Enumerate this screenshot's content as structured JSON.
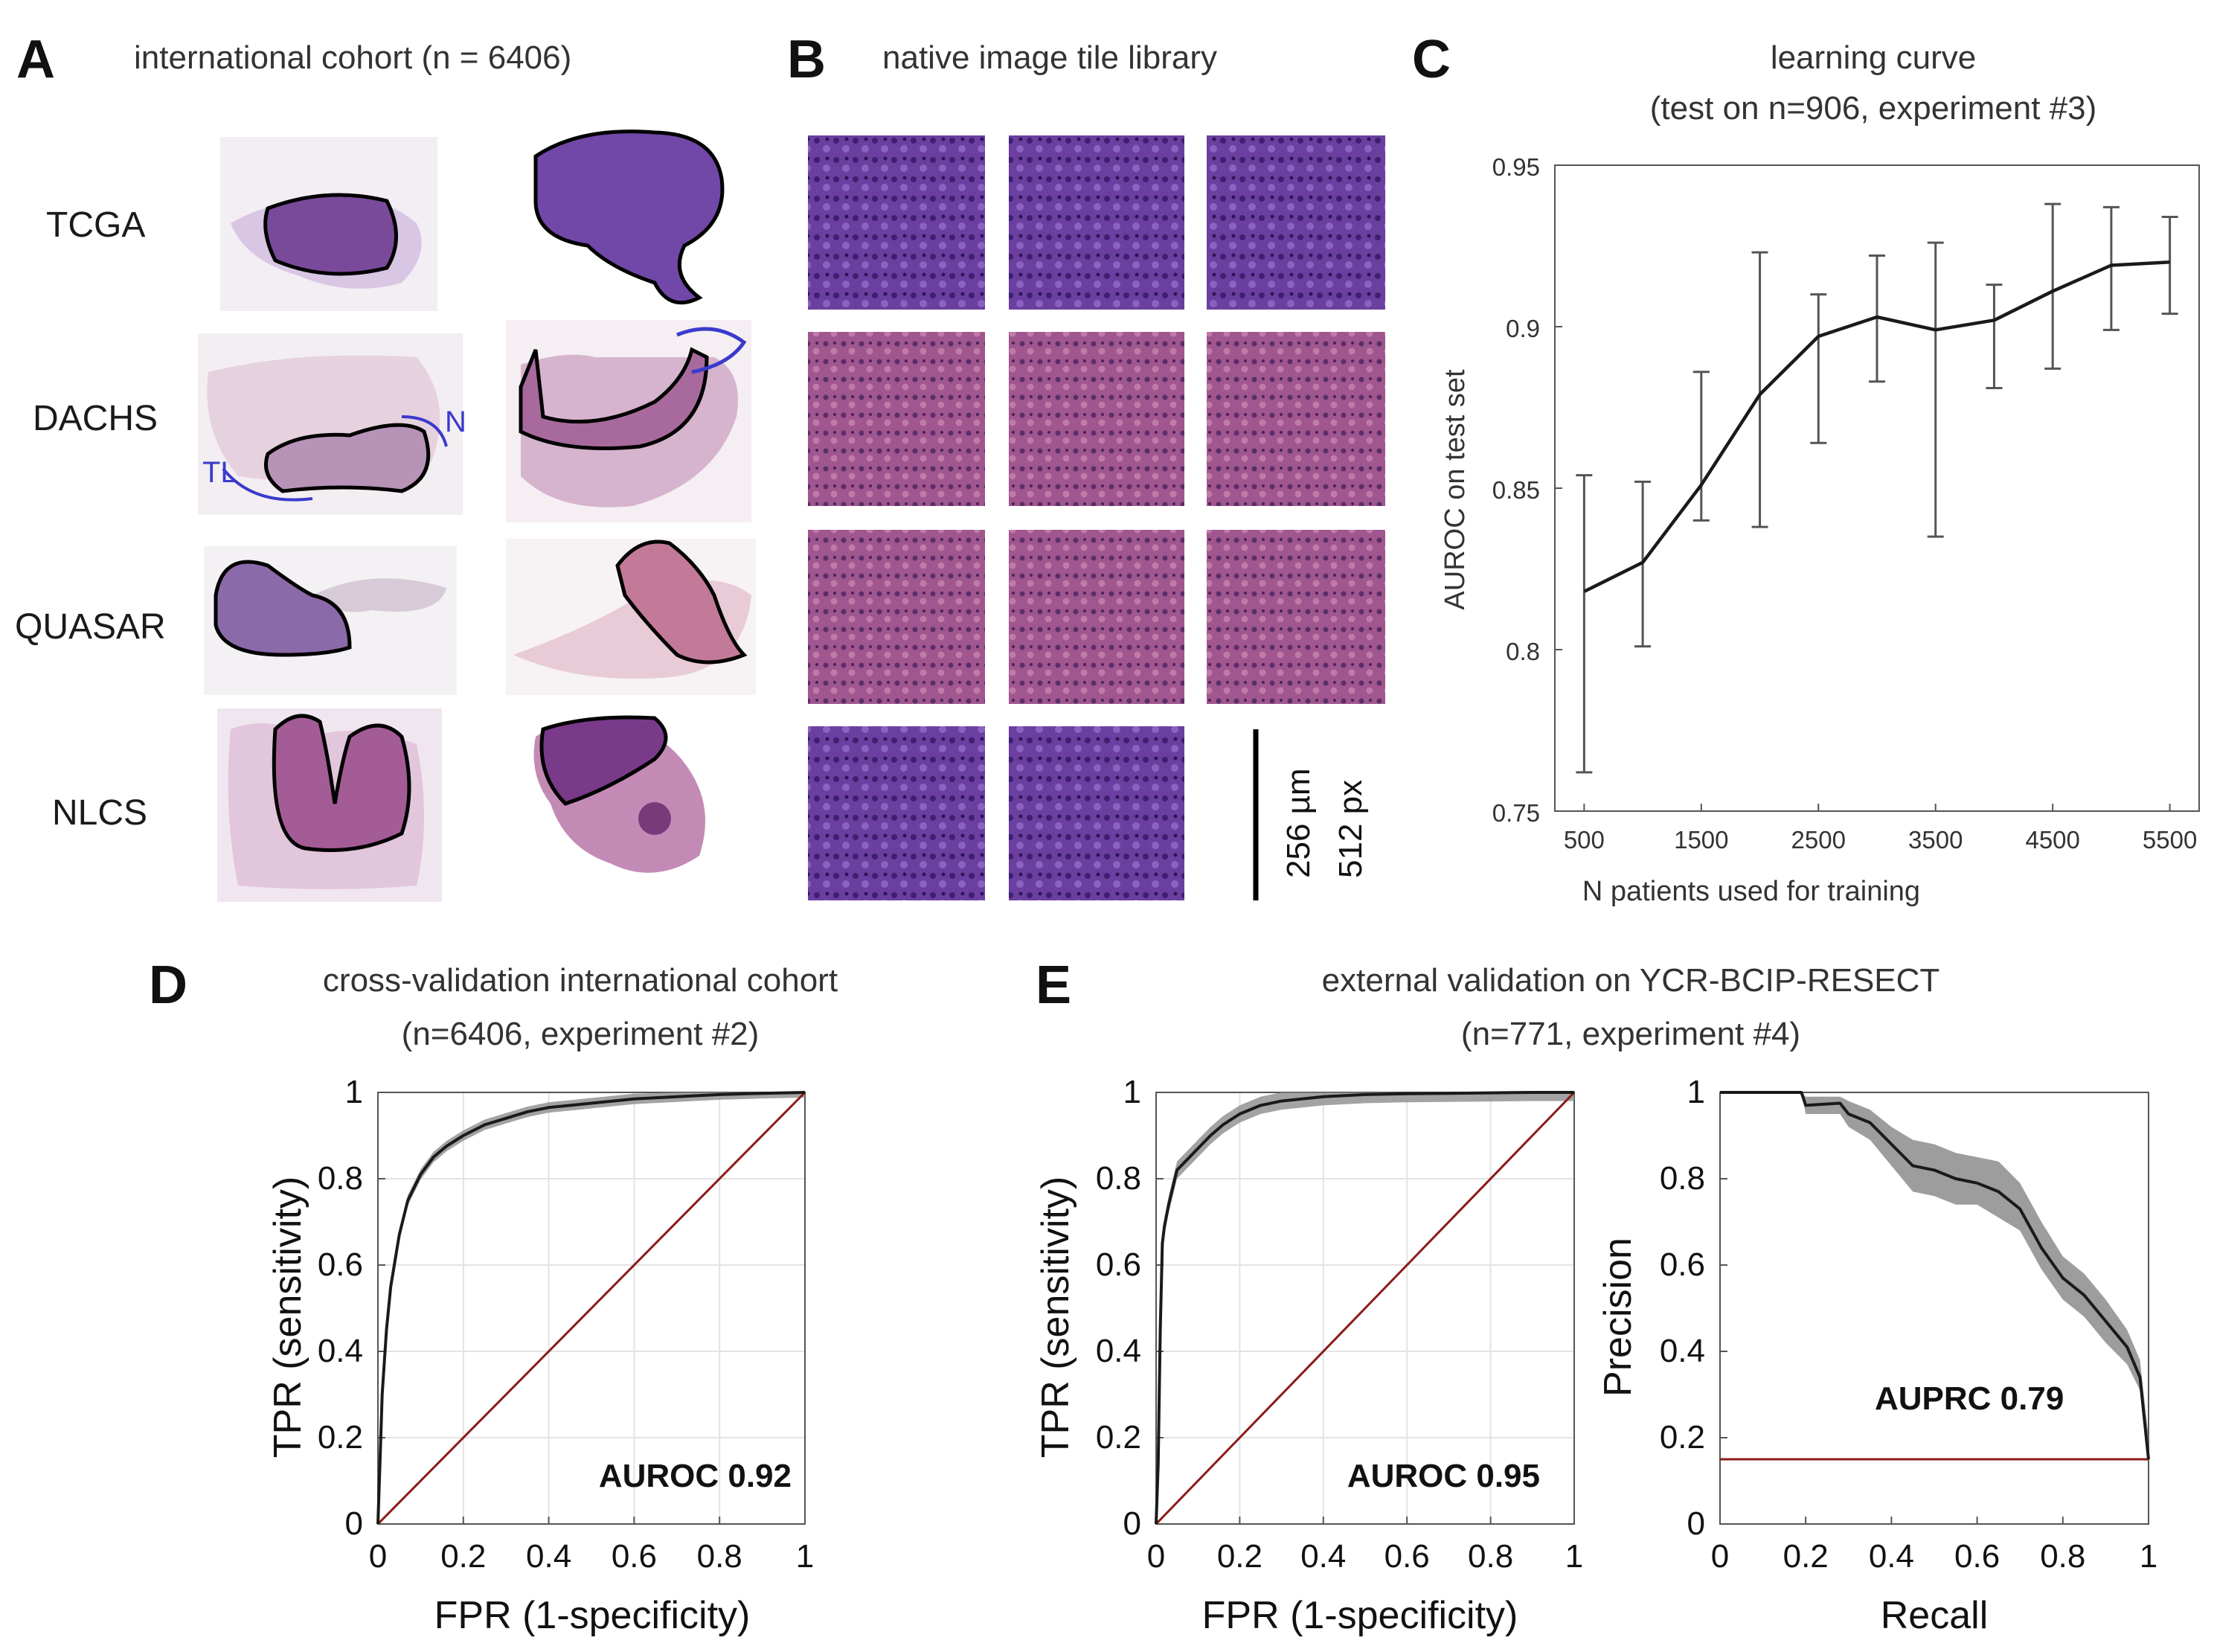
{
  "panel_a": {
    "letter": "A",
    "title": "international cohort (n = 6406)",
    "rows": [
      "TCGA",
      "DACHS",
      "QUASAR",
      "NLCS"
    ]
  },
  "panel_b": {
    "letter": "B",
    "title": "native image tile library",
    "scalebar": {
      "microns": "256 µm",
      "pixels": "512 px"
    }
  },
  "colors": {
    "curve": "#1a1a1a",
    "diagonal": "#8b1a1a",
    "band": "#8c8c8c",
    "errorbar": "#555555",
    "grid": "#e3e3e3",
    "tile_purple": "#6a3fa0",
    "tile_pink": "#a0568e"
  },
  "chart_data": [
    {
      "id": "C",
      "letter": "C",
      "type": "line",
      "title": "learning curve",
      "subtitle": "(test on n=906, experiment #3)",
      "xlabel": "N patients used for training",
      "ylabel": "AUROC on test set",
      "xlim": [
        250,
        5750
      ],
      "ylim": [
        0.75,
        0.95
      ],
      "xticks": [
        500,
        1500,
        2500,
        3500,
        4500,
        5500
      ],
      "xtick_labels": [
        "500",
        "1500",
        "2500",
        "3500",
        "4500",
        "5500"
      ],
      "yticks": [
        0.75,
        0.8,
        0.85,
        0.9,
        0.95
      ],
      "ytick_labels": [
        "0.75",
        "0.8",
        "0.85",
        "0.9",
        "0.95"
      ],
      "grid": false,
      "x": [
        500,
        1000,
        1500,
        2000,
        2500,
        3000,
        3500,
        4000,
        4500,
        5000,
        5500
      ],
      "y": [
        0.818,
        0.827,
        0.851,
        0.879,
        0.897,
        0.903,
        0.899,
        0.902,
        0.911,
        0.919,
        0.92
      ],
      "y_low": [
        0.762,
        0.801,
        0.84,
        0.838,
        0.864,
        0.883,
        0.835,
        0.881,
        0.887,
        0.899,
        0.904
      ],
      "y_high": [
        0.854,
        0.852,
        0.886,
        0.923,
        0.91,
        0.922,
        0.926,
        0.913,
        0.938,
        0.937,
        0.934
      ]
    },
    {
      "id": "D",
      "letter": "D",
      "type": "line",
      "title": "cross-validation international cohort",
      "subtitle": "(n=6406, experiment #2)",
      "xlabel": "FPR (1-specificity)",
      "ylabel": "TPR (sensitivity)",
      "xlim": [
        0,
        1
      ],
      "ylim": [
        0,
        1
      ],
      "xticks": [
        0,
        0.2,
        0.4,
        0.6,
        0.8,
        1
      ],
      "xtick_labels": [
        "0",
        "0.2",
        "0.4",
        "0.6",
        "0.8",
        "1"
      ],
      "yticks": [
        0,
        0.2,
        0.4,
        0.6,
        0.8,
        1
      ],
      "ytick_labels": [
        "0",
        "0.2",
        "0.4",
        "0.6",
        "0.8",
        "1"
      ],
      "grid": true,
      "annotation": "AUROC 0.92",
      "x": [
        0,
        0.005,
        0.01,
        0.02,
        0.03,
        0.05,
        0.07,
        0.1,
        0.13,
        0.16,
        0.2,
        0.25,
        0.3,
        0.35,
        0.4,
        0.5,
        0.6,
        0.7,
        0.8,
        0.9,
        1.0
      ],
      "y": [
        0,
        0.15,
        0.3,
        0.45,
        0.55,
        0.67,
        0.75,
        0.81,
        0.85,
        0.875,
        0.9,
        0.925,
        0.94,
        0.955,
        0.965,
        0.975,
        0.985,
        0.99,
        0.995,
        0.998,
        1.0
      ],
      "band": 0.012,
      "reference_line": {
        "x": [
          0,
          1
        ],
        "y": [
          0,
          1
        ]
      }
    },
    {
      "id": "E1",
      "letter": "E",
      "type": "line",
      "title": "external validation on YCR-BCIP-RESECT",
      "subtitle": "(n=771,  experiment #4)",
      "xlabel": "FPR (1-specificity)",
      "ylabel": "TPR (sensitivity)",
      "xlim": [
        0,
        1
      ],
      "ylim": [
        0,
        1
      ],
      "xticks": [
        0,
        0.2,
        0.4,
        0.6,
        0.8,
        1
      ],
      "xtick_labels": [
        "0",
        "0.2",
        "0.4",
        "0.6",
        "0.8",
        "1"
      ],
      "yticks": [
        0,
        0.2,
        0.4,
        0.6,
        0.8,
        1
      ],
      "ytick_labels": [
        "0",
        "0.2",
        "0.4",
        "0.6",
        "0.8",
        "1"
      ],
      "grid": true,
      "annotation": "AUROC 0.95",
      "x": [
        0,
        0.005,
        0.01,
        0.015,
        0.02,
        0.03,
        0.04,
        0.05,
        0.07,
        0.1,
        0.13,
        0.16,
        0.2,
        0.25,
        0.3,
        0.4,
        0.5,
        0.6,
        0.7,
        0.8,
        0.9,
        1.0
      ],
      "y": [
        0,
        0.14,
        0.45,
        0.65,
        0.69,
        0.74,
        0.78,
        0.82,
        0.84,
        0.87,
        0.9,
        0.925,
        0.95,
        0.97,
        0.98,
        0.99,
        0.995,
        0.997,
        0.998,
        0.999,
        1.0,
        1.0
      ],
      "band": 0.02,
      "reference_line": {
        "x": [
          0,
          1
        ],
        "y": [
          0,
          1
        ]
      }
    },
    {
      "id": "E2",
      "type": "line",
      "xlabel": "Recall",
      "ylabel": "Precision",
      "xlim": [
        0,
        1
      ],
      "ylim": [
        0,
        1
      ],
      "xticks": [
        0,
        0.2,
        0.4,
        0.6,
        0.8,
        1
      ],
      "xtick_labels": [
        "0",
        "0.2",
        "0.4",
        "0.6",
        "0.8",
        "1"
      ],
      "yticks": [
        0,
        0.2,
        0.4,
        0.6,
        0.8,
        1
      ],
      "ytick_labels": [
        "0",
        "0.2",
        "0.4",
        "0.6",
        "0.8",
        "1"
      ],
      "grid": false,
      "annotation": "AUPRC 0.79",
      "x": [
        0,
        0.1,
        0.19,
        0.2,
        0.28,
        0.3,
        0.35,
        0.4,
        0.45,
        0.5,
        0.55,
        0.6,
        0.65,
        0.7,
        0.75,
        0.8,
        0.85,
        0.9,
        0.95,
        0.98,
        1.0
      ],
      "y": [
        1.0,
        1.0,
        1.0,
        0.97,
        0.975,
        0.95,
        0.93,
        0.88,
        0.83,
        0.82,
        0.8,
        0.79,
        0.77,
        0.73,
        0.64,
        0.57,
        0.53,
        0.47,
        0.41,
        0.34,
        0.15
      ],
      "band_low": [
        1.0,
        1.0,
        1.0,
        0.95,
        0.95,
        0.92,
        0.89,
        0.83,
        0.77,
        0.76,
        0.74,
        0.74,
        0.71,
        0.68,
        0.59,
        0.52,
        0.48,
        0.42,
        0.37,
        0.31,
        0.15
      ],
      "band_high": [
        1.0,
        1.0,
        1.0,
        0.99,
        0.99,
        0.98,
        0.96,
        0.92,
        0.89,
        0.88,
        0.86,
        0.85,
        0.84,
        0.79,
        0.7,
        0.62,
        0.58,
        0.52,
        0.45,
        0.38,
        0.2
      ],
      "baseline": 0.15
    }
  ]
}
